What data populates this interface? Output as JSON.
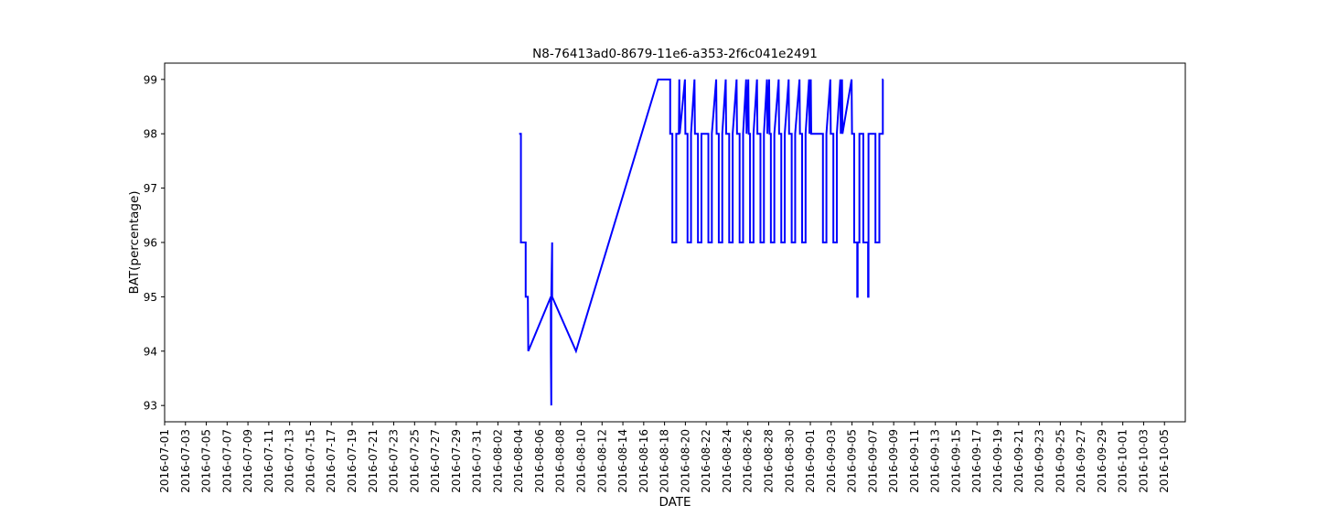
{
  "chart_data": {
    "type": "line",
    "title": "N8-76413ad0-8679-11e6-a353-2f6c041e2491",
    "x_label": "DATE",
    "y_label": "BAT(percentage)",
    "color": "#0000ff",
    "xlim": [
      "2016-07-01",
      "2016-10-07"
    ],
    "xticks": [
      "2016-07-01",
      "2016-07-03",
      "2016-07-05",
      "2016-07-07",
      "2016-07-09",
      "2016-07-11",
      "2016-07-13",
      "2016-07-15",
      "2016-07-17",
      "2016-07-19",
      "2016-07-21",
      "2016-07-23",
      "2016-07-25",
      "2016-07-27",
      "2016-07-29",
      "2016-07-31",
      "2016-08-02",
      "2016-08-04",
      "2016-08-06",
      "2016-08-08",
      "2016-08-10",
      "2016-08-12",
      "2016-08-14",
      "2016-08-16",
      "2016-08-18",
      "2016-08-20",
      "2016-08-22",
      "2016-08-24",
      "2016-08-26",
      "2016-08-28",
      "2016-08-30",
      "2016-09-01",
      "2016-09-03",
      "2016-09-05",
      "2016-09-07",
      "2016-09-09",
      "2016-09-11",
      "2016-09-13",
      "2016-09-15",
      "2016-09-17",
      "2016-09-19",
      "2016-09-21",
      "2016-09-23",
      "2016-09-25",
      "2016-09-27",
      "2016-09-29",
      "2016-10-01",
      "2016-10-03",
      "2016-10-05"
    ],
    "ylim": [
      92.7,
      99.3
    ],
    "yticks": [
      93,
      94,
      95,
      96,
      97,
      98,
      99
    ],
    "x": [
      "2016-08-04T01:00",
      "2016-08-04T05:00",
      "2016-08-04T05:00",
      "2016-08-04T16:00",
      "2016-08-04T16:00",
      "2016-08-04T21:00",
      "2016-08-04T22:00",
      "2016-08-07T02:00",
      "2016-08-07T02:00",
      "2016-08-07T03:00",
      "2016-08-07T03:00",
      "2016-08-07T05:00",
      "2016-08-07T05:00",
      "2016-08-09T12:00",
      "2016-08-17T09:00",
      "2016-08-18T13:00",
      "2016-08-18T13:00",
      "2016-08-18T18:00",
      "2016-08-18T18:00",
      "2016-08-19T03:00",
      "2016-08-19T03:00",
      "2016-08-19T09:00",
      "2016-08-19T10:00",
      "2016-08-19T11:00",
      "2016-08-19T23:00",
      "2016-08-20T00:00",
      "2016-08-20T05:00",
      "2016-08-20T05:00",
      "2016-08-20T13:00",
      "2016-08-20T13:00",
      "2016-08-20T21:00",
      "2016-08-20T22:00",
      "2016-08-21T05:00",
      "2016-08-21T05:00",
      "2016-08-21T13:00",
      "2016-08-21T13:00",
      "2016-08-22T05:00",
      "2016-08-22T05:00",
      "2016-08-22T13:00",
      "2016-08-22T13:00",
      "2016-08-22T23:00",
      "2016-08-23T00:00",
      "2016-08-23T05:00",
      "2016-08-23T05:00",
      "2016-08-23T13:00",
      "2016-08-23T13:00",
      "2016-08-23T21:00",
      "2016-08-23T22:00",
      "2016-08-24T05:00",
      "2016-08-24T05:00",
      "2016-08-24T13:00",
      "2016-08-24T13:00",
      "2016-08-24T22:00",
      "2016-08-24T23:00",
      "2016-08-25T05:00",
      "2016-08-25T05:00",
      "2016-08-25T13:00",
      "2016-08-25T13:00",
      "2016-08-25T20:00",
      "2016-08-25T21:00",
      "2016-08-26T01:00",
      "2016-08-26T02:00",
      "2016-08-26T05:00",
      "2016-08-26T05:00",
      "2016-08-26T13:00",
      "2016-08-26T13:00",
      "2016-08-26T21:00",
      "2016-08-26T22:00",
      "2016-08-27T05:00",
      "2016-08-27T05:00",
      "2016-08-27T13:00",
      "2016-08-27T13:00",
      "2016-08-27T20:00",
      "2016-08-27T21:00",
      "2016-08-28T01:00",
      "2016-08-28T02:00",
      "2016-08-28T05:00",
      "2016-08-28T05:00",
      "2016-08-28T13:00",
      "2016-08-28T13:00",
      "2016-08-28T23:00",
      "2016-08-29T00:00",
      "2016-08-29T05:00",
      "2016-08-29T05:00",
      "2016-08-29T13:00",
      "2016-08-29T13:00",
      "2016-08-29T22:00",
      "2016-08-29T23:00",
      "2016-08-30T05:00",
      "2016-08-30T05:00",
      "2016-08-30T13:00",
      "2016-08-30T13:00",
      "2016-08-30T23:00",
      "2016-08-31T00:00",
      "2016-08-31T05:00",
      "2016-08-31T05:00",
      "2016-08-31T13:00",
      "2016-08-31T13:00",
      "2016-08-31T21:00",
      "2016-08-31T22:00",
      "2016-09-01T01:00",
      "2016-09-01T02:00",
      "2016-09-02T05:00",
      "2016-09-02T05:00",
      "2016-09-02T13:00",
      "2016-09-02T13:00",
      "2016-09-02T22:00",
      "2016-09-02T23:00",
      "2016-09-03T05:00",
      "2016-09-03T05:00",
      "2016-09-03T13:00",
      "2016-09-03T13:00",
      "2016-09-03T21:00",
      "2016-09-03T22:00",
      "2016-09-04T01:00",
      "2016-09-04T02:00",
      "2016-09-04T23:00",
      "2016-09-05T00:00",
      "2016-09-05T05:00",
      "2016-09-05T05:00",
      "2016-09-05T12:00",
      "2016-09-05T12:00",
      "2016-09-05T13:00",
      "2016-09-05T13:00",
      "2016-09-05T17:00",
      "2016-09-05T17:00",
      "2016-09-06T02:00",
      "2016-09-06T02:00",
      "2016-09-06T13:00",
      "2016-09-06T13:00",
      "2016-09-06T14:00",
      "2016-09-06T14:00",
      "2016-09-07T06:00",
      "2016-09-07T06:00",
      "2016-09-07T15:00",
      "2016-09-07T15:00",
      "2016-09-07T23:00",
      "2016-09-07T23:00",
      "2016-09-08T00:00"
    ],
    "values": [
      98,
      98,
      96,
      96,
      95,
      95,
      94,
      95,
      94,
      93,
      95,
      96,
      95,
      94,
      99,
      99,
      98,
      98,
      96,
      96,
      98,
      98,
      99,
      98,
      99,
      98,
      98,
      96,
      96,
      98,
      99,
      98,
      98,
      96,
      96,
      98,
      98,
      96,
      96,
      98,
      99,
      98,
      98,
      96,
      96,
      98,
      99,
      98,
      98,
      96,
      96,
      98,
      99,
      98,
      98,
      96,
      96,
      98,
      99,
      98,
      99,
      98,
      98,
      96,
      96,
      98,
      99,
      98,
      98,
      96,
      96,
      98,
      99,
      98,
      99,
      98,
      98,
      96,
      96,
      98,
      99,
      98,
      98,
      96,
      96,
      98,
      99,
      98,
      98,
      96,
      96,
      98,
      99,
      98,
      98,
      96,
      96,
      98,
      99,
      98,
      99,
      98,
      98,
      96,
      96,
      98,
      99,
      98,
      98,
      96,
      96,
      98,
      99,
      98,
      99,
      98,
      99,
      98,
      98,
      96,
      96,
      95,
      95,
      96,
      96,
      98,
      98,
      96,
      96,
      95,
      95,
      98,
      98,
      96,
      96,
      98,
      98,
      99,
      99
    ]
  }
}
